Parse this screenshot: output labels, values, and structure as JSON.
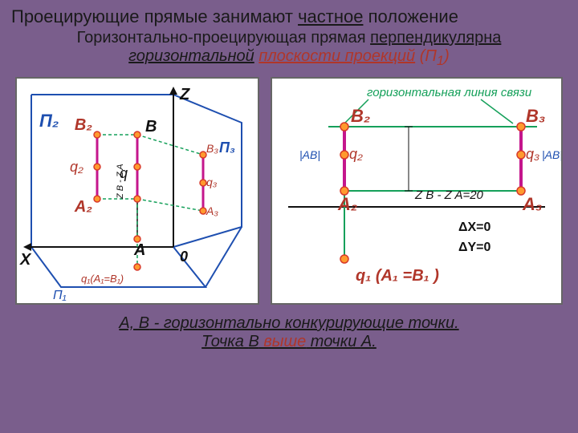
{
  "colors": {
    "bg": "#7a5e8c",
    "panel_bg": "#ffffff",
    "panel_border": "#888888",
    "title_text": "#1a1a1a",
    "red": "#b0362a",
    "blue": "#1e4fb0",
    "green": "#15a05a",
    "black": "#111111",
    "node_fill": "#ff9a2e",
    "node_stroke": "#d83a2a",
    "magenta": "#c4168c"
  },
  "title_parts": {
    "a": "Проецирующие прямые ",
    "b": "занимают ",
    "c": "частное",
    "d": " положение"
  },
  "subtitle_parts": {
    "a": "Горизонтально-проецирующая прямая ",
    "b": "перпендикулярна",
    "c": "горизонтальной",
    "d": "плоскости проекций",
    "e": "(П",
    "f": "1",
    "g": ")"
  },
  "footer": {
    "line1_a": "A, B",
    "line1_b": " - горизонтально конкурирующие точки.",
    "line2_a": "Точка ",
    "line2_b": "B",
    "line2_c": " выше",
    "line2_d": " точки ",
    "line2_e": "A."
  },
  "fig1": {
    "type": "3d-diagram",
    "axes": {
      "X": "X",
      "Z": "Z",
      "O": "0"
    },
    "planes": {
      "P1": "П₁",
      "P2": "П₂",
      "P3": "П₃"
    },
    "points": {
      "B2": "B₂",
      "q2": "q₂",
      "A2": "A₂",
      "B": "B",
      "q": "q",
      "A": "A",
      "B3": "B₃",
      "q3": "q₃",
      "A3": "A₃",
      "q1": "q₁(A₁=B₁)"
    },
    "zseg": "Z B - Z A",
    "line_width": 2,
    "heavy_line_width": 3,
    "node_r": 4
  },
  "fig2": {
    "type": "orthographic",
    "horiz_label": "горизонтальная линия связи",
    "B2": "B₂",
    "B3": "B₃",
    "q2": "q₂",
    "q3": "q₃",
    "A2": "A₂",
    "A3": "A₃",
    "IABI_l": "|AB|",
    "IABI_r": "|AB|",
    "zdiff": "Z B - Z A=20",
    "dx": "ΔX=0",
    "dy": "ΔY=0",
    "q1": "q₁ (A₁ =B₁ )",
    "line_width": 2,
    "heavy_line_width": 3,
    "node_r": 5
  }
}
